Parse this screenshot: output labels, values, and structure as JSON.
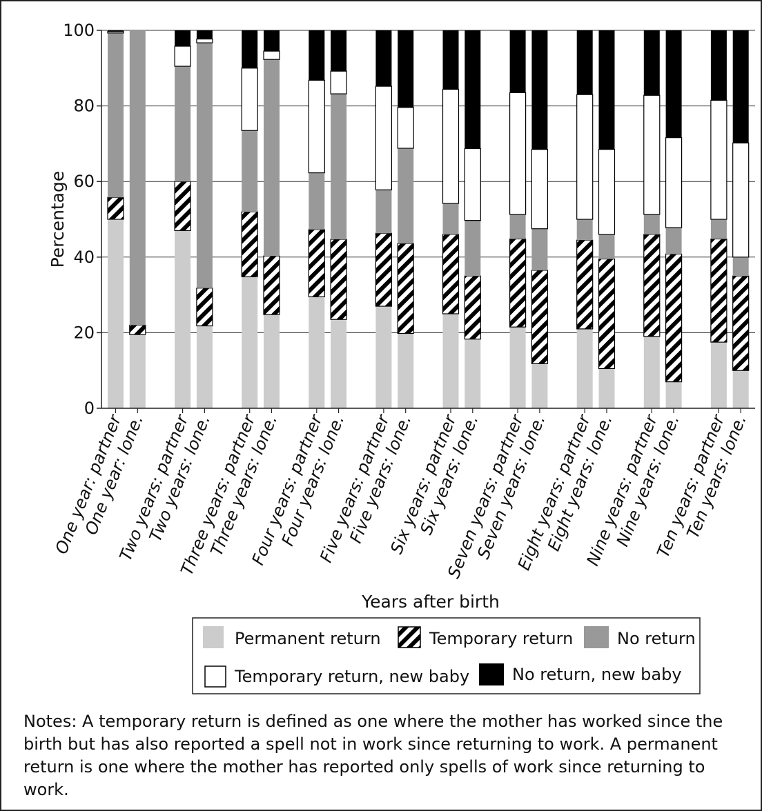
{
  "chart_data": {
    "type": "bar",
    "stacked": true,
    "xlabel": "Years after birth",
    "ylabel": "Percentage",
    "ylim": [
      0,
      100
    ],
    "yticks": [
      0,
      20,
      40,
      60,
      80,
      100
    ],
    "grid": true,
    "legend_position": "bottom",
    "categories": [
      "One year: partner",
      "One year: lone.",
      "Two years: partner",
      "Two years: lone.",
      "Three years: partner",
      "Three years: lone.",
      "Four years: partner",
      "Four years: lone.",
      "Five years: partner",
      "Five years: lone.",
      "Six years: partner",
      "Six years: lone.",
      "Seven years: partner",
      "Seven years: lone.",
      "Eight years: partner",
      "Eight years: lone.",
      "Nine years: partner",
      "Nine years: lone.",
      "Ten years: partner",
      "Ten years: lone."
    ],
    "series": [
      {
        "name": "Permanent return",
        "fill": "#cccccc",
        "values": [
          50,
          19.5,
          47,
          21.8,
          34.8,
          24.8,
          29.5,
          23.5,
          27,
          19.8,
          25,
          18.3,
          21.5,
          11.8,
          21,
          10.5,
          19,
          7,
          17.5,
          10
        ]
      },
      {
        "name": "Temporary return",
        "fill": "hatch",
        "values": [
          5.8,
          2.5,
          13,
          10,
          17.2,
          15.5,
          17.8,
          21.2,
          19.3,
          23.8,
          21,
          16.7,
          23.3,
          24.7,
          23.5,
          29,
          27,
          33.8,
          27.3,
          25
        ]
      },
      {
        "name": "No return",
        "fill": "#999999",
        "values": [
          43.5,
          78,
          30.5,
          64.9,
          21.5,
          52,
          15,
          38.5,
          11.5,
          25.2,
          8.2,
          14.7,
          6.5,
          11,
          5.5,
          6.5,
          5.3,
          7,
          5.2,
          5
        ]
      },
      {
        "name": "Temporary return, new baby",
        "fill": "#ffffff",
        "values": [
          0.4,
          0,
          5.3,
          1,
          16.5,
          2.2,
          24.5,
          6,
          27.4,
          10.8,
          30.2,
          19,
          32.2,
          21,
          33,
          22.5,
          31.5,
          23.8,
          31.5,
          30.2
        ]
      },
      {
        "name": "No return, new baby",
        "fill": "#000000",
        "values": [
          0.3,
          0,
          4.2,
          2.3,
          10,
          5.5,
          13.2,
          10.8,
          14.8,
          20.4,
          15.6,
          31.3,
          16.5,
          31.5,
          17,
          31.5,
          17.2,
          28.4,
          18.5,
          29.8
        ]
      }
    ]
  },
  "notes": "Notes: A temporary return is defined as one where the mother has worked since the birth but has also reported a spell not in work since returning to work.  A permanent return is one where the mother has reported only spells of work since returning to work."
}
